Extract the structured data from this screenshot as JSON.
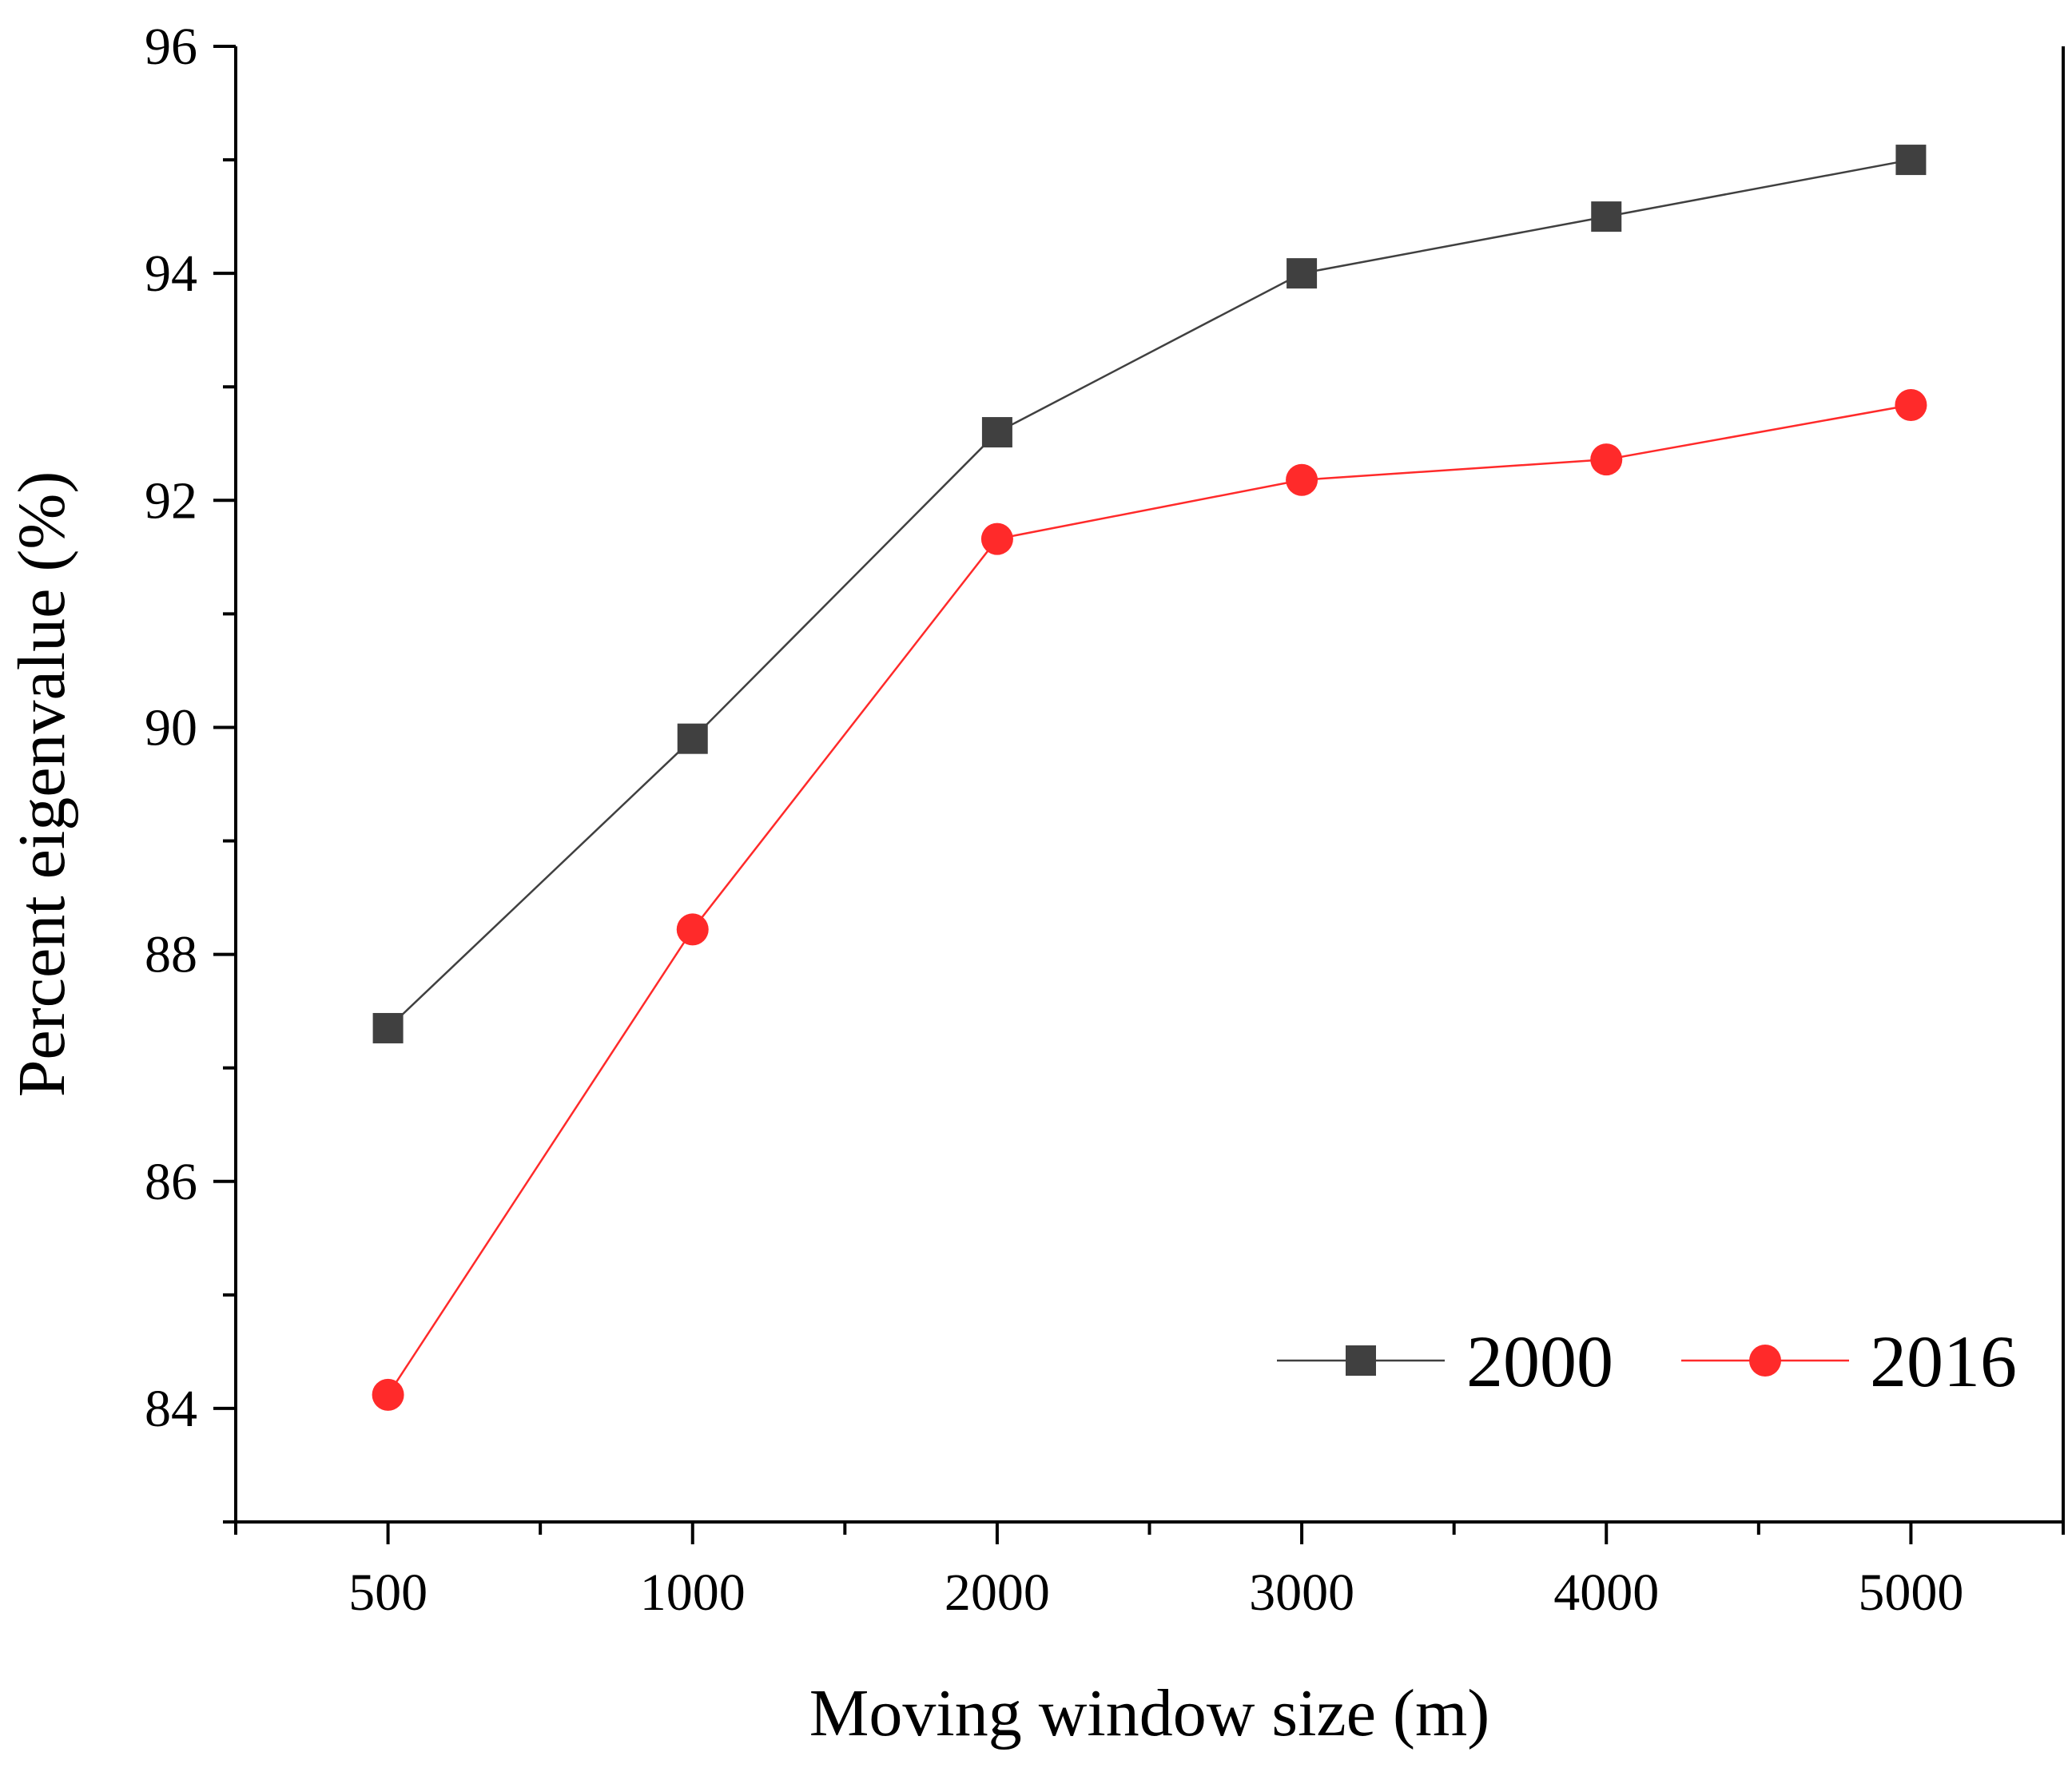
{
  "chart_data": {
    "type": "line",
    "title": "",
    "xlabel": "Moving window size (m)",
    "ylabel": "Percent eigenvalue (%)",
    "categories": [
      "500",
      "1000",
      "2000",
      "3000",
      "4000",
      "5000"
    ],
    "ylim": [
      83,
      96
    ],
    "yticks": [
      "84",
      "86",
      "88",
      "90",
      "92",
      "94",
      "96"
    ],
    "grid": false,
    "legend_position": "bottom-right",
    "series": [
      {
        "name": "2000",
        "values": [
          87.35,
          89.9,
          92.6,
          94.0,
          94.5,
          95.0
        ],
        "color": "#404040",
        "marker": "square"
      },
      {
        "name": "2016",
        "values": [
          84.12,
          88.22,
          91.66,
          92.18,
          92.36,
          92.84
        ],
        "color": "#ff2a2a",
        "marker": "circle"
      }
    ]
  }
}
